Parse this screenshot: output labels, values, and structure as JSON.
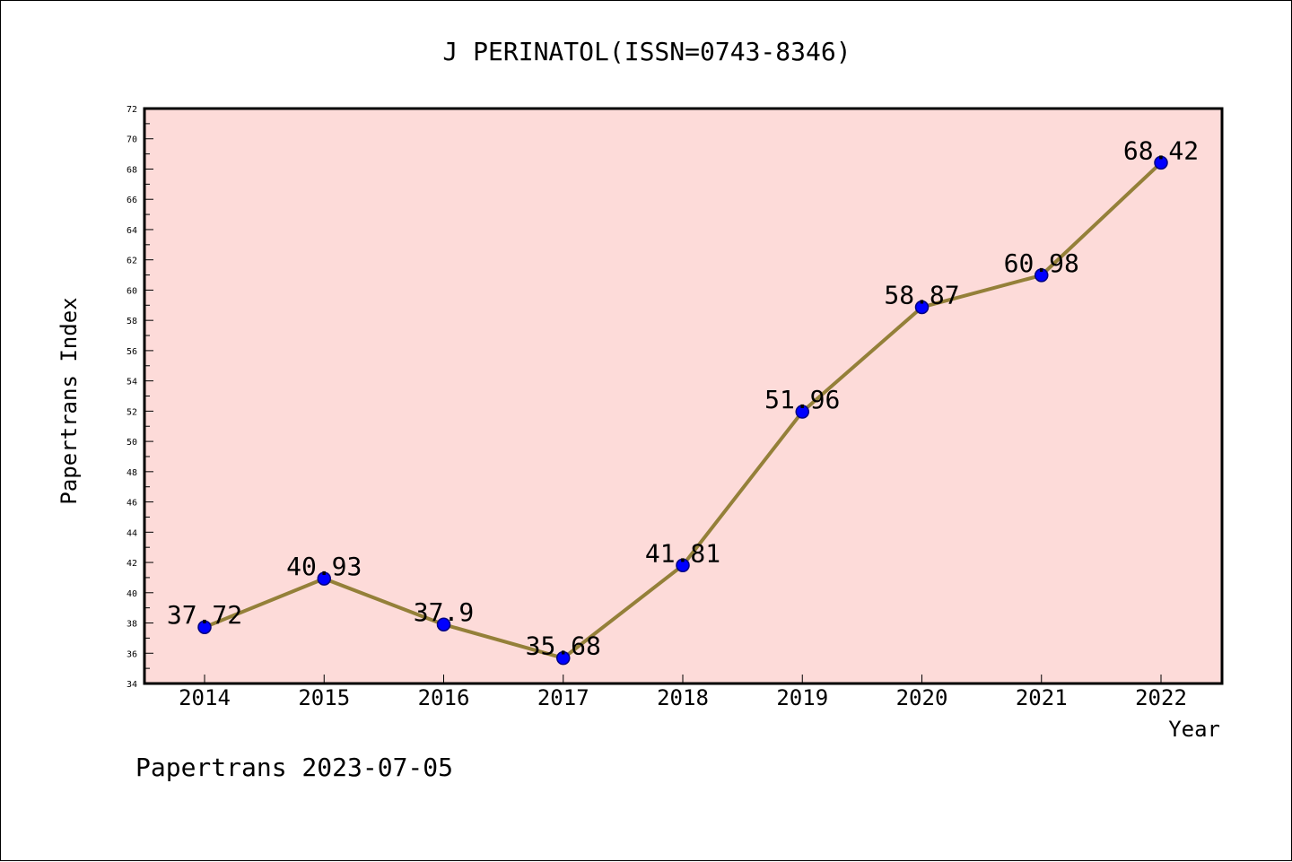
{
  "chart_data": {
    "type": "line",
    "title": "J PERINATOL(ISSN=0743-8346)",
    "xlabel": "Year",
    "ylabel": "Papertrans Index",
    "x": [
      "2014",
      "2015",
      "2016",
      "2017",
      "2018",
      "2019",
      "2020",
      "2021",
      "2022"
    ],
    "series": [
      {
        "values": [
          37.72,
          40.93,
          37.9,
          35.68,
          41.81,
          51.96,
          58.87,
          60.98,
          68.42
        ],
        "labels": [
          "37.72",
          "40.93",
          "37.9",
          "35.68",
          "41.81",
          "51.96",
          "58.87",
          "60.98",
          "68.42"
        ]
      }
    ],
    "ylim": [
      34,
      72
    ],
    "yticks": [
      "34",
      "36",
      "38",
      "40",
      "42",
      "44",
      "46",
      "48",
      "50",
      "52",
      "54",
      "56",
      "58",
      "60",
      "62",
      "64",
      "66",
      "68",
      "70",
      "72"
    ],
    "grid": false,
    "legend": "none",
    "colors": {
      "plot_background": "#fddbd9",
      "line": "#948039",
      "marker": "#0000ff",
      "marker_edge": "#000080"
    }
  },
  "watermark": "Papertrans 2023-07-05"
}
